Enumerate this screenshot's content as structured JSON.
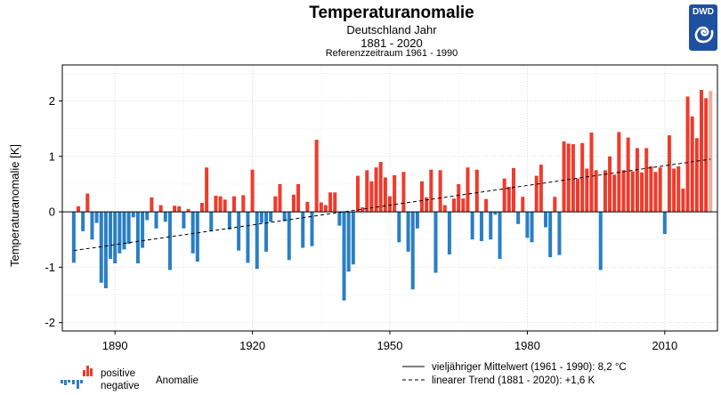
{
  "title": "Temperaturanomalie",
  "subtitle1": "Deutschland Jahr",
  "subtitle2": "1881 - 2020",
  "subtitle3": "Referenzzeitraum 1961 - 1990",
  "logo_text": "DWD",
  "legend": {
    "positive": "positive",
    "negative": "negative",
    "anomalie": "Anomalie",
    "mean_line": "vieljähriger Mittelwert (1961 - 1990): 8,2 °C",
    "trend_line": "linearer Trend (1881 - 2020): +1,6 K"
  },
  "colors": {
    "positive": "#ef3b2c",
    "negative": "#2a7fc4",
    "last": "#f4a89e"
  },
  "chart_data": {
    "type": "bar",
    "ylabel": "Temperaturanomalie [K]",
    "ylim": [
      -2.15,
      2.65
    ],
    "xlim": [
      1878.5,
      2021.5
    ],
    "yticks": [
      -2,
      -1,
      0,
      1,
      2
    ],
    "xticks": [
      1890,
      1920,
      1950,
      1980,
      2010
    ],
    "grid": true,
    "x": [
      1881,
      1882,
      1883,
      1884,
      1885,
      1886,
      1887,
      1888,
      1889,
      1890,
      1891,
      1892,
      1893,
      1894,
      1895,
      1896,
      1897,
      1898,
      1899,
      1900,
      1901,
      1902,
      1903,
      1904,
      1905,
      1906,
      1907,
      1908,
      1909,
      1910,
      1911,
      1912,
      1913,
      1914,
      1915,
      1916,
      1917,
      1918,
      1919,
      1920,
      1921,
      1922,
      1923,
      1924,
      1925,
      1926,
      1927,
      1928,
      1929,
      1930,
      1931,
      1932,
      1933,
      1934,
      1935,
      1936,
      1937,
      1938,
      1939,
      1940,
      1941,
      1942,
      1943,
      1944,
      1945,
      1946,
      1947,
      1948,
      1949,
      1950,
      1951,
      1952,
      1953,
      1954,
      1955,
      1956,
      1957,
      1958,
      1959,
      1960,
      1961,
      1962,
      1963,
      1964,
      1965,
      1966,
      1967,
      1968,
      1969,
      1970,
      1971,
      1972,
      1973,
      1974,
      1975,
      1976,
      1977,
      1978,
      1979,
      1980,
      1981,
      1982,
      1983,
      1984,
      1985,
      1986,
      1987,
      1988,
      1989,
      1990,
      1991,
      1992,
      1993,
      1994,
      1995,
      1996,
      1997,
      1998,
      1999,
      2000,
      2001,
      2002,
      2003,
      2004,
      2005,
      2006,
      2007,
      2008,
      2009,
      2010,
      2011,
      2012,
      2013,
      2014,
      2015,
      2016,
      2017,
      2018,
      2019,
      2020
    ],
    "values": [
      -0.92,
      0.1,
      -0.35,
      0.33,
      -0.5,
      -0.2,
      -1.28,
      -1.38,
      -0.85,
      -0.93,
      -0.75,
      -0.68,
      -0.58,
      -0.1,
      -0.93,
      -0.65,
      -0.15,
      0.26,
      -0.3,
      0.12,
      -0.18,
      -1.05,
      0.11,
      0.1,
      -0.3,
      0.05,
      -0.75,
      -0.9,
      0.16,
      0.8,
      -0.35,
      0.29,
      0.28,
      0.22,
      -0.32,
      0.28,
      -0.7,
      0.3,
      -0.92,
      0.76,
      -1.03,
      -0.2,
      -0.72,
      -0.18,
      0.28,
      0.5,
      -0.17,
      -0.87,
      0.31,
      0.5,
      -0.65,
      0.18,
      -0.62,
      1.3,
      0.17,
      0.12,
      0.35,
      0.35,
      -0.25,
      -1.6,
      -1.08,
      -0.95,
      0.65,
      0.08,
      0.75,
      0.55,
      0.8,
      0.9,
      0.62,
      0.28,
      0.66,
      -0.55,
      0.72,
      -0.72,
      -1.4,
      -0.3,
      0.55,
      0.26,
      0.76,
      -1.1,
      0.75,
      0.12,
      -0.77,
      0.24,
      0.5,
      0.24,
      0.8,
      -0.5,
      0.76,
      -0.53,
      0.23,
      -0.5,
      -0.05,
      -0.85,
      0.6,
      0.45,
      0.79,
      -0.22,
      0.27,
      -0.47,
      -0.55,
      0.65,
      0.85,
      -0.28,
      -0.82,
      0.27,
      -0.78,
      1.27,
      1.23,
      1.22,
      0.6,
      1.24,
      0.78,
      1.43,
      0.75,
      -1.05,
      0.75,
      1.0,
      0.67,
      1.44,
      0.75,
      1.34,
      0.73,
      1.15,
      0.71,
      1.15,
      0.82,
      0.72,
      0.8,
      -0.4,
      1.38,
      0.78,
      0.82,
      0.42,
      2.08,
      1.72,
      1.33,
      2.2,
      2.05,
      2.18
    ],
    "mean_label": "vieljähriger Mittelwert (1961 - 1990): 8,2 °C",
    "trend": {
      "start": -0.7,
      "end": 0.95
    }
  }
}
